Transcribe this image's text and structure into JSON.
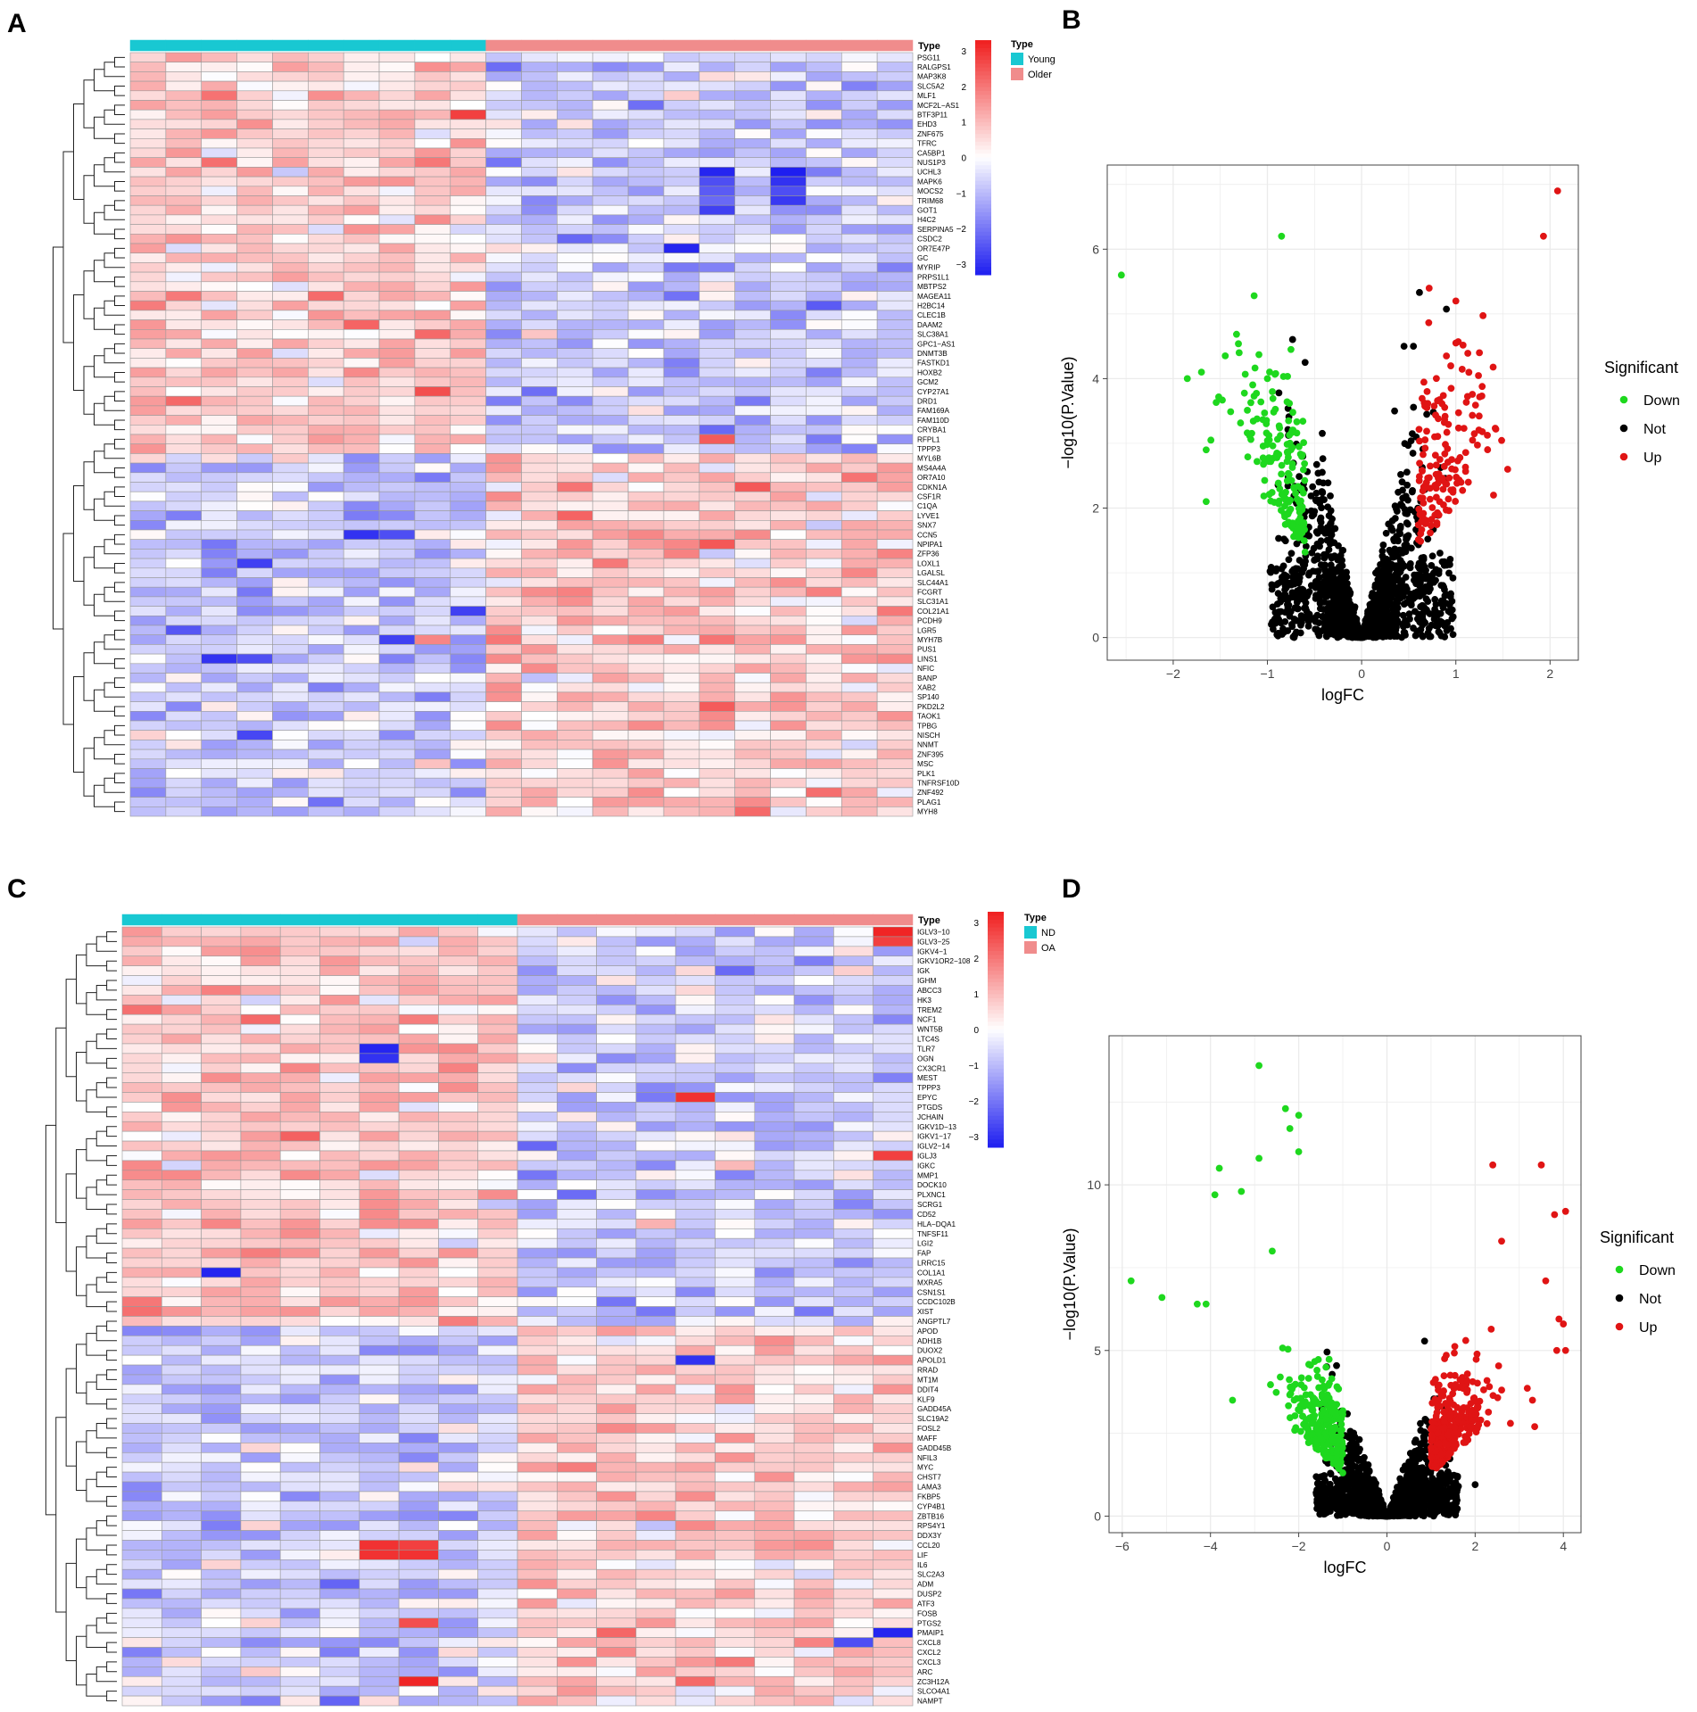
{
  "panels": {
    "A": {
      "letter": "A"
    },
    "B": {
      "letter": "B"
    },
    "C": {
      "letter": "C"
    },
    "D": {
      "letter": "D"
    }
  },
  "colors": {
    "young_nd": "#19C8D2",
    "older_oa": "#F08C8C",
    "heat_low": "#1E1EF0",
    "heat_mid": "#FFFFFF",
    "heat_high": "#F01E1E",
    "down": "#1ED81E",
    "not": "#000000",
    "up": "#E01414",
    "plot_bg": "#FFFFFF",
    "grid": "#EBEBEB",
    "axis": "#444444",
    "dendro": "#222222"
  },
  "chart_data": [
    {
      "panel": "A",
      "type": "heatmap",
      "title": "",
      "n_cols": 22,
      "groups": [
        {
          "name": "Young",
          "count": 10,
          "color_key": "young_nd"
        },
        {
          "name": "Older",
          "count": 12,
          "color_key": "older_oa"
        }
      ],
      "annotation_label": "Type",
      "legend_title": "Type",
      "legend_entries": [
        "Young",
        "Older"
      ],
      "colorbar_ticks": [
        "3",
        "2",
        "1",
        "0",
        "−1",
        "−2",
        "−3"
      ],
      "colorbar_range": [
        -3.3,
        3.3
      ],
      "first_block": 42,
      "genes": [
        "PSG11",
        "RALGPS1",
        "MAP3K8",
        "SLC5A2",
        "MLF1",
        "MCF2L−AS1",
        "BTF3P11",
        "EHD3",
        "ZNF675",
        "TFRC",
        "CA5BP1",
        "NUS1P3",
        "UCHL3",
        "MAPK6",
        "MOCS2",
        "TRIM68",
        "GOT1",
        "H4C2",
        "SERPINA5",
        "CSDC2",
        "OR7E47P",
        "GC",
        "MYRIP",
        "PRPS1L1",
        "MBTPS2",
        "MAGEA11",
        "H2BC14",
        "CLEC1B",
        "DAAM2",
        "SLC38A1",
        "GPC1−AS1",
        "DNMT3B",
        "FASTKD1",
        "HOXB2",
        "GCM2",
        "CYP27A1",
        "DRD1",
        "FAM169A",
        "FAM110D",
        "CRYBA1",
        "RFPL1",
        "TPPP3",
        "MYL6B",
        "MS4A4A",
        "OR7A10",
        "CDKN1A",
        "CSF1R",
        "C1QA",
        "LYVE1",
        "SNX7",
        "CCN5",
        "NPIPA1",
        "ZFP36",
        "LOXL1",
        "LGALSL",
        "SLC44A1",
        "FCGRT",
        "SLC31A1",
        "COL21A1",
        "PCDH9",
        "LGR5",
        "MYH7B",
        "PUS1",
        "LINS1",
        "NFIC",
        "BANP",
        "XAB2",
        "SP140",
        "PKD2L2",
        "TAOK1",
        "TPBG",
        "NISCH",
        "NNMT",
        "ZNF395",
        "MSC",
        "PLK1",
        "TNFRSF10D",
        "ZNF492",
        "PLAG1",
        "MYH8"
      ],
      "strong_cells": [
        {
          "row": 12,
          "col": 16,
          "value": -3.2
        },
        {
          "row": 13,
          "col": 16,
          "value": -2.6
        },
        {
          "row": 14,
          "col": 16,
          "value": -2.4
        },
        {
          "row": 15,
          "col": 16,
          "value": -2.2
        },
        {
          "row": 16,
          "col": 16,
          "value": -2.8
        },
        {
          "row": 12,
          "col": 18,
          "value": -3.3
        },
        {
          "row": 13,
          "col": 18,
          "value": -3
        },
        {
          "row": 14,
          "col": 18,
          "value": -2.6
        },
        {
          "row": 15,
          "col": 18,
          "value": -2.9
        },
        {
          "row": 20,
          "col": 15,
          "value": -3.2
        },
        {
          "row": 50,
          "col": 6,
          "value": -3
        },
        {
          "row": 50,
          "col": 7,
          "value": -2.6
        },
        {
          "row": 53,
          "col": 3,
          "value": -2.8
        },
        {
          "row": 58,
          "col": 9,
          "value": -2.8
        },
        {
          "row": 60,
          "col": 1,
          "value": -2.5
        },
        {
          "row": 63,
          "col": 2,
          "value": -3
        },
        {
          "row": 63,
          "col": 3,
          "value": -2.6
        },
        {
          "row": 71,
          "col": 3,
          "value": -2.7
        },
        {
          "row": 61,
          "col": 7,
          "value": -2.8
        },
        {
          "row": 6,
          "col": 9,
          "value": 2.8
        },
        {
          "row": 35,
          "col": 8,
          "value": 2.6
        },
        {
          "row": 29,
          "col": 8,
          "value": 2.2
        },
        {
          "row": 40,
          "col": 16,
          "value": 2.4
        },
        {
          "row": 68,
          "col": 16,
          "value": 2.4
        },
        {
          "row": 79,
          "col": 17,
          "value": 2.2
        }
      ]
    },
    {
      "panel": "B",
      "type": "scatter",
      "title": "",
      "xlabel": "logFC",
      "ylabel": "−log10(P.Value)",
      "xlim": [
        -2.7,
        2.3
      ],
      "ylim": [
        -0.35,
        7.3
      ],
      "xticks": [
        -2,
        -1,
        0,
        1,
        2
      ],
      "yticks": [
        0,
        2,
        4,
        6
      ],
      "xtick_labels": [
        "−2",
        "−1",
        "0",
        "1",
        "2"
      ],
      "ytick_labels": [
        "0",
        "2",
        "4",
        "6"
      ],
      "legend_title": "Significant",
      "legend_entries": [
        "Down",
        "Not",
        "Up"
      ],
      "fc_cut": 0.6,
      "p_cut_y": 1.3,
      "n_not": 1400,
      "n_down": 170,
      "n_up": 150,
      "highlights": [
        {
          "x": -2.55,
          "y": 5.6,
          "class": "Down"
        },
        {
          "x": -0.85,
          "y": 6.2,
          "class": "Down"
        },
        {
          "x": -1.3,
          "y": 4.4,
          "class": "Down"
        },
        {
          "x": -1.85,
          "y": 4.0,
          "class": "Down"
        },
        {
          "x": -1.7,
          "y": 4.1,
          "class": "Down"
        },
        {
          "x": -0.75,
          "y": 4.45,
          "class": "Down"
        },
        {
          "x": -1.0,
          "y": 4.0,
          "class": "Down"
        },
        {
          "x": -1.6,
          "y": 3.05,
          "class": "Down"
        },
        {
          "x": -1.65,
          "y": 2.9,
          "class": "Down"
        },
        {
          "x": -1.65,
          "y": 2.1,
          "class": "Down"
        },
        {
          "x": -0.6,
          "y": 4.25,
          "class": "Not"
        },
        {
          "x": 0.45,
          "y": 4.5,
          "class": "Not"
        },
        {
          "x": 0.55,
          "y": 4.5,
          "class": "Not"
        },
        {
          "x": 0.35,
          "y": 3.5,
          "class": "Not"
        },
        {
          "x": 2.08,
          "y": 6.9,
          "class": "Up"
        },
        {
          "x": 1.93,
          "y": 6.2,
          "class": "Up"
        },
        {
          "x": 1.0,
          "y": 5.2,
          "class": "Up"
        },
        {
          "x": 0.9,
          "y": 4.35,
          "class": "Up"
        },
        {
          "x": 1.0,
          "y": 4.55,
          "class": "Up"
        },
        {
          "x": 1.25,
          "y": 4.4,
          "class": "Up"
        },
        {
          "x": 0.95,
          "y": 3.85,
          "class": "Up"
        },
        {
          "x": 1.55,
          "y": 2.6,
          "class": "Up"
        },
        {
          "x": 1.4,
          "y": 2.2,
          "class": "Up"
        }
      ]
    },
    {
      "panel": "C",
      "type": "heatmap",
      "title": "",
      "n_cols": 20,
      "groups": [
        {
          "name": "ND",
          "count": 10,
          "color_key": "young_nd"
        },
        {
          "name": "OA",
          "count": 10,
          "color_key": "older_oa"
        }
      ],
      "annotation_label": "Type",
      "legend_title": "Type",
      "legend_entries": [
        "ND",
        "OA"
      ],
      "colorbar_ticks": [
        "3",
        "2",
        "1",
        "0",
        "−1",
        "−2",
        "−3"
      ],
      "colorbar_range": [
        -3.3,
        3.3
      ],
      "first_block": 41,
      "genes": [
        "IGLV3−10",
        "IGLV3−25",
        "IGKV4−1",
        "IGKV1OR2−108",
        "IGK",
        "IGHM",
        "ABCC3",
        "HK3",
        "TREM2",
        "NCF1",
        "WNT5B",
        "LTC4S",
        "TLR7",
        "OGN",
        "CX3CR1",
        "MEST",
        "TPPP3",
        "EPYC",
        "PTGDS",
        "JCHAIN",
        "IGKV1D−13",
        "IGKV1−17",
        "IGLV2−14",
        "IGLJ3",
        "IGKC",
        "MMP1",
        "DOCK10",
        "PLXNC1",
        "SCRG1",
        "CD52",
        "HLA−DQA1",
        "TNFSF11",
        "LGI2",
        "FAP",
        "LRRC15",
        "COL1A1",
        "MXRA5",
        "CSN1S1",
        "CCDC102B",
        "XIST",
        "ANGPTL7",
        "APOD",
        "ADH1B",
        "DUOX2",
        "APOLD1",
        "RRAD",
        "MT1M",
        "DDIT4",
        "KLF9",
        "GADD45A",
        "SLC19A2",
        "FOSL2",
        "MAFF",
        "GADD45B",
        "NFIL3",
        "MYC",
        "CHST7",
        "LAMA3",
        "FKBP5",
        "CYP4B1",
        "ZBTB16",
        "RPS4Y1",
        "DDX3Y",
        "CCL20",
        "LIF",
        "IL6",
        "SLC2A3",
        "ADM",
        "DUSP2",
        "ATF3",
        "FOSB",
        "PTGS2",
        "PMAIP1",
        "CXCL8",
        "CXCL2",
        "CXCL3",
        "ARC",
        "ZC3H12A",
        "SLCO4A1",
        "NAMPT"
      ],
      "strong_cells": [
        {
          "row": 0,
          "col": 19,
          "value": 3.2
        },
        {
          "row": 1,
          "col": 19,
          "value": 2.8
        },
        {
          "row": 17,
          "col": 14,
          "value": 3
        },
        {
          "row": 23,
          "col": 19,
          "value": 2.8
        },
        {
          "row": 12,
          "col": 6,
          "value": -3.2
        },
        {
          "row": 13,
          "col": 6,
          "value": -3
        },
        {
          "row": 35,
          "col": 2,
          "value": -3.2
        },
        {
          "row": 44,
          "col": 14,
          "value": -3
        },
        {
          "row": 63,
          "col": 6,
          "value": 3
        },
        {
          "row": 64,
          "col": 6,
          "value": 3
        },
        {
          "row": 63,
          "col": 7,
          "value": 2.8
        },
        {
          "row": 64,
          "col": 7,
          "value": 3
        },
        {
          "row": 77,
          "col": 7,
          "value": 3.2
        },
        {
          "row": 71,
          "col": 7,
          "value": 2.6
        },
        {
          "row": 72,
          "col": 19,
          "value": -3.2
        },
        {
          "row": 73,
          "col": 18,
          "value": -2.6
        }
      ]
    },
    {
      "panel": "D",
      "type": "scatter",
      "title": "",
      "xlabel": "logFC",
      "ylabel": "−log10(P.Value)",
      "xlim": [
        -6.3,
        4.4
      ],
      "ylim": [
        -0.5,
        14.5
      ],
      "xticks": [
        -6,
        -4,
        -2,
        0,
        2,
        4
      ],
      "yticks": [
        0,
        5,
        10
      ],
      "xtick_labels": [
        "−6",
        "−4",
        "−2",
        "0",
        "2",
        "4"
      ],
      "ytick_labels": [
        "0",
        "5",
        "10"
      ],
      "legend_title": "Significant",
      "legend_entries": [
        "Down",
        "Not",
        "Up"
      ],
      "fc_cut": 1.0,
      "p_cut_y": 1.3,
      "n_not": 1500,
      "n_down": 260,
      "n_up": 290,
      "highlights": [
        {
          "x": -2.9,
          "y": 13.6,
          "class": "Down"
        },
        {
          "x": -2.3,
          "y": 12.3,
          "class": "Down"
        },
        {
          "x": -2.0,
          "y": 12.1,
          "class": "Down"
        },
        {
          "x": -2.2,
          "y": 11.7,
          "class": "Down"
        },
        {
          "x": -2.0,
          "y": 11.0,
          "class": "Down"
        },
        {
          "x": -3.8,
          "y": 10.5,
          "class": "Down"
        },
        {
          "x": -2.9,
          "y": 10.8,
          "class": "Down"
        },
        {
          "x": -3.9,
          "y": 9.7,
          "class": "Down"
        },
        {
          "x": -3.3,
          "y": 9.8,
          "class": "Down"
        },
        {
          "x": -5.8,
          "y": 7.1,
          "class": "Down"
        },
        {
          "x": -5.1,
          "y": 6.6,
          "class": "Down"
        },
        {
          "x": -4.3,
          "y": 6.4,
          "class": "Down"
        },
        {
          "x": -4.1,
          "y": 6.4,
          "class": "Down"
        },
        {
          "x": -3.5,
          "y": 3.5,
          "class": "Down"
        },
        {
          "x": -2.6,
          "y": 8.0,
          "class": "Down"
        },
        {
          "x": 2.4,
          "y": 10.6,
          "class": "Up"
        },
        {
          "x": 3.5,
          "y": 10.6,
          "class": "Up"
        },
        {
          "x": 3.8,
          "y": 9.1,
          "class": "Up"
        },
        {
          "x": 4.05,
          "y": 9.2,
          "class": "Up"
        },
        {
          "x": 2.6,
          "y": 8.3,
          "class": "Up"
        },
        {
          "x": 3.6,
          "y": 7.1,
          "class": "Up"
        },
        {
          "x": 3.9,
          "y": 5.95,
          "class": "Up"
        },
        {
          "x": 4.0,
          "y": 5.8,
          "class": "Up"
        },
        {
          "x": 3.85,
          "y": 5.0,
          "class": "Up"
        },
        {
          "x": 4.05,
          "y": 5.0,
          "class": "Up"
        },
        {
          "x": 3.3,
          "y": 3.5,
          "class": "Up"
        },
        {
          "x": 3.35,
          "y": 2.7,
          "class": "Up"
        },
        {
          "x": 2.8,
          "y": 2.8,
          "class": "Up"
        },
        {
          "x": 2.0,
          "y": 0.95,
          "class": "Not"
        }
      ]
    }
  ]
}
